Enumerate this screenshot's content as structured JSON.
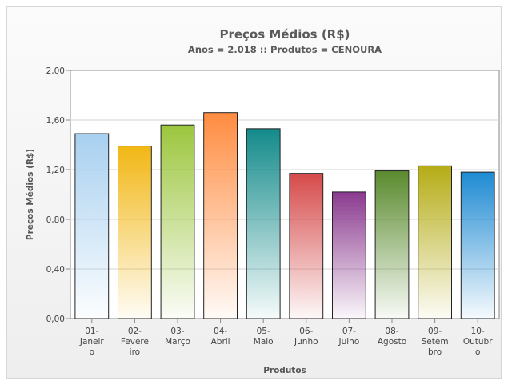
{
  "chart_data": {
    "type": "bar",
    "title": "Preços Médios (R$)",
    "subtitle": "Anos = 2.018 :: Produtos = CENOURA",
    "xlabel": "Produtos",
    "ylabel": "Preços Médios (R$)",
    "ylim": [
      0,
      2.0
    ],
    "yticks": [
      "0,00",
      "0,40",
      "0,80",
      "1,20",
      "1,60",
      "2,00"
    ],
    "grid": true,
    "categories": [
      [
        "01-",
        "Janeir",
        "o"
      ],
      [
        "02-",
        "Fevere",
        "iro"
      ],
      [
        "03-",
        "Março"
      ],
      [
        "04-",
        "Abril"
      ],
      [
        "05-",
        "Maio"
      ],
      [
        "06-",
        "Junho"
      ],
      [
        "07-",
        "Julho"
      ],
      [
        "08-",
        "Agosto"
      ],
      [
        "09-",
        "Setem",
        "bro"
      ],
      [
        "10-",
        "Outubr",
        "o"
      ]
    ],
    "values": [
      1.49,
      1.39,
      1.56,
      1.66,
      1.53,
      1.17,
      1.02,
      1.19,
      1.23,
      1.18
    ],
    "colors": [
      "#a8d0f0",
      "#f2b714",
      "#9cc63e",
      "#ff8c40",
      "#138a8a",
      "#d64a4a",
      "#8b3a8f",
      "#5a8a2e",
      "#b5ac16",
      "#1e8ad2"
    ]
  }
}
